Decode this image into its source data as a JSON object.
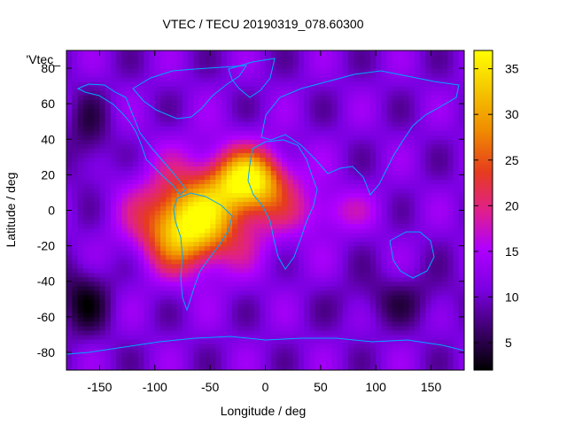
{
  "chart_data": {
    "type": "heatmap",
    "title": "VTEC / TECU 20190319_078.60300",
    "series_label": "'Vtec_",
    "xlabel": "Longitude / deg",
    "ylabel": "Latitude / deg",
    "xlim": [
      -180,
      180
    ],
    "ylim": [
      -90,
      90
    ],
    "x_ticks": [
      -150,
      -100,
      -50,
      0,
      50,
      100,
      150
    ],
    "y_ticks": [
      -80,
      -60,
      -40,
      -20,
      0,
      20,
      40,
      60,
      80
    ],
    "colorbar": {
      "range": [
        2,
        37
      ],
      "ticks": [
        5,
        10,
        15,
        20,
        25,
        30,
        35
      ],
      "colormap": [
        "#000000",
        "#3a0066",
        "#7a00e0",
        "#b000ff",
        "#e0208a",
        "#e63c1e",
        "#f08c00",
        "#f5c800",
        "#ffff00"
      ]
    },
    "features": [
      {
        "name": "equatorial-anomaly-americas",
        "lon": -70,
        "lat": -10,
        "vtec": 31
      },
      {
        "name": "equatorial-anomaly-atlantic-africa",
        "lon": -15,
        "lat": 18,
        "vtec": 33
      },
      {
        "name": "background-min",
        "vtec": 3
      }
    ],
    "grid": false,
    "legend": "top-left",
    "coastline_color": "#00a8ff"
  }
}
